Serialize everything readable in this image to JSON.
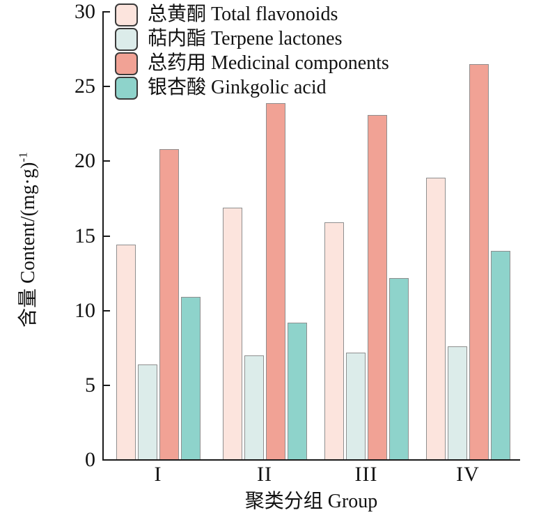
{
  "chart_data": {
    "type": "bar",
    "title": "",
    "categories": [
      "I",
      "II",
      "III",
      "IV"
    ],
    "series": [
      {
        "name": "总黄酮 Total flavonoids",
        "key": "total-flavonoids",
        "color": "#fce4dd",
        "values": [
          14.4,
          16.9,
          15.9,
          18.9
        ]
      },
      {
        "name": "萜内酯 Terpene lactones",
        "key": "terpene-lactones",
        "color": "#dcecea",
        "values": [
          6.4,
          7.0,
          7.2,
          7.6
        ]
      },
      {
        "name": "总药用 Medicinal components",
        "key": "medicinal-components",
        "color": "#f1a295",
        "values": [
          20.8,
          23.9,
          23.1,
          26.5
        ]
      },
      {
        "name": "银杏酸 Ginkgolic acid",
        "key": "ginkgolic-acid",
        "color": "#8ed3cb",
        "values": [
          10.9,
          9.2,
          12.2,
          14.0
        ]
      }
    ],
    "xlabel": "聚类分组 Group",
    "ylabel": "含量 Content/(mg·g)⁻¹",
    "ylabel_base": "含量 Content/(mg·g)",
    "ylabel_sup": "-1",
    "ylim": [
      0,
      30
    ],
    "yticks": [
      0,
      5,
      10,
      15,
      20,
      25,
      30
    ],
    "grid": false,
    "legend_position": "top-left-inside",
    "bar_border_color": "#8f8f8f",
    "legend_swatch_border_color": "#3a3a3a",
    "axis_color": "#1a1a1a"
  }
}
